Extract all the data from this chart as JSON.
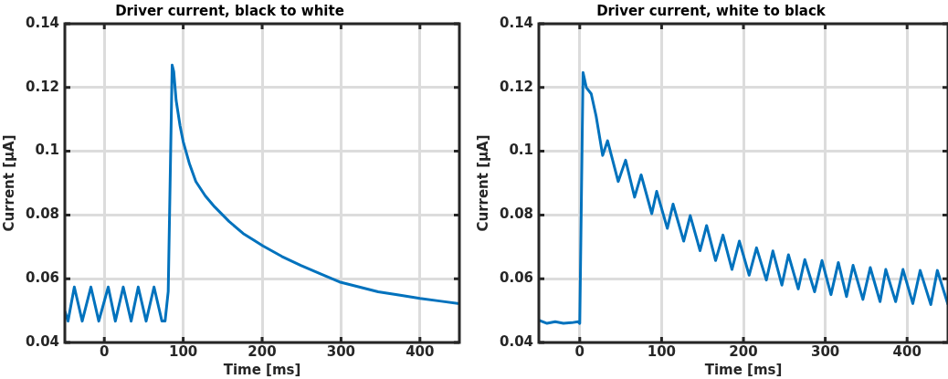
{
  "chart_data": [
    {
      "type": "line",
      "title": "Driver current, black to white",
      "xlabel": "Time [ms]",
      "ylabel": "Current [µA]",
      "xlim": [
        -50,
        450
      ],
      "xticks": [
        0,
        100,
        200,
        300,
        400
      ],
      "ylim": [
        0.04,
        0.14
      ],
      "yticks": [
        0.04,
        0.06,
        0.08,
        0.1,
        0.12,
        0.14
      ],
      "grid": true,
      "legend": false,
      "series": [
        {
          "color": "#0072bd",
          "x": [
            -50,
            -46,
            -38,
            -28,
            -17,
            -7,
            5,
            14,
            24,
            34,
            43,
            53,
            63,
            73,
            77,
            81,
            86,
            88,
            91,
            96,
            100,
            108,
            116,
            128,
            140,
            158,
            176,
            190,
            201,
            225,
            249,
            274,
            298,
            322,
            347,
            375,
            400,
            425,
            450
          ],
          "values": [
            0.0498,
            0.0467,
            0.0574,
            0.0467,
            0.0574,
            0.0467,
            0.0574,
            0.0467,
            0.0574,
            0.0467,
            0.0574,
            0.0467,
            0.0574,
            0.0467,
            0.0467,
            0.056,
            0.127,
            0.125,
            0.116,
            0.108,
            0.103,
            0.096,
            0.0905,
            0.086,
            0.0825,
            0.078,
            0.0742,
            0.072,
            0.0703,
            0.067,
            0.0642,
            0.0615,
            0.059,
            0.0575,
            0.0559,
            0.0548,
            0.0538,
            0.053,
            0.0522
          ]
        }
      ]
    },
    {
      "type": "line",
      "title": "Driver current, white to black",
      "xlabel": "Time [ms]",
      "ylabel": "Current [µA]",
      "xlim": [
        -50,
        450
      ],
      "xticks": [
        0,
        100,
        200,
        300,
        400
      ],
      "ylim": [
        0.04,
        0.14
      ],
      "yticks": [
        0.04,
        0.06,
        0.08,
        0.1,
        0.12,
        0.14
      ],
      "grid": true,
      "legend": false,
      "series": [
        {
          "color": "#0072bd",
          "x": [
            -50,
            -40,
            -30,
            -20,
            -10,
            -2,
            0,
            4,
            8,
            14,
            20,
            28,
            34,
            47,
            56,
            67,
            75,
            88,
            94,
            107,
            114,
            127,
            135,
            147,
            155,
            166,
            175,
            186,
            195,
            207,
            216,
            228,
            236,
            247,
            255,
            267,
            275,
            287,
            296,
            307,
            316,
            326,
            334,
            346,
            355,
            367,
            374,
            386,
            395,
            407,
            416,
            429,
            437,
            450
          ],
          "values": [
            0.047,
            0.046,
            0.0465,
            0.046,
            0.0462,
            0.0465,
            0.046,
            0.1247,
            0.12,
            0.118,
            0.111,
            0.0987,
            0.1033,
            0.0905,
            0.0972,
            0.0856,
            0.0926,
            0.0804,
            0.0874,
            0.0758,
            0.0834,
            0.0718,
            0.0798,
            0.0688,
            0.0767,
            0.0657,
            0.0737,
            0.0629,
            0.0718,
            0.0611,
            0.0697,
            0.0596,
            0.0687,
            0.058,
            0.0675,
            0.0568,
            0.066,
            0.0559,
            0.0657,
            0.055,
            0.0651,
            0.0544,
            0.0642,
            0.0535,
            0.0635,
            0.0528,
            0.0629,
            0.0528,
            0.0629,
            0.0522,
            0.0626,
            0.0519,
            0.0626,
            0.0519
          ]
        }
      ]
    }
  ]
}
